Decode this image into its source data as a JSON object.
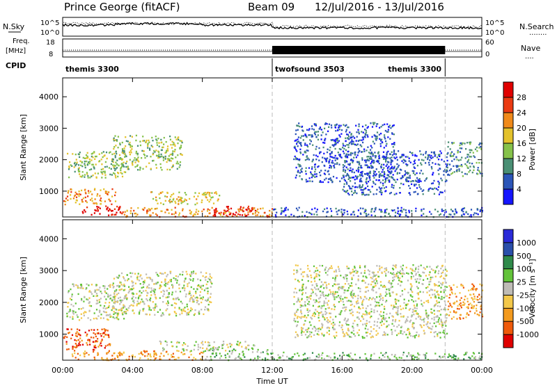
{
  "header": {
    "station": "Prince George (fitACF)",
    "beam": "Beam 09",
    "date_range": "12/Jul/2016 - 13/Jul/2016"
  },
  "nsky_panel": {
    "left_label": "N.Sky",
    "right_label": "N.Search",
    "right_legend": "........",
    "left_ticks": [
      "10^5",
      "10^0"
    ],
    "right_ticks": [
      "10^5",
      "10^0"
    ]
  },
  "freq_panel": {
    "left_label_1": "Freq.",
    "left_label_2": "[MHz]",
    "right_label": "Nave",
    "right_legend": "....",
    "left_ticks": [
      "18",
      "8"
    ],
    "right_ticks": [
      "60",
      "0"
    ]
  },
  "cpid": {
    "label": "CPID",
    "segments": [
      {
        "start_h": 0,
        "end_h": 12,
        "name": "themis 3300"
      },
      {
        "start_h": 12,
        "end_h": 21.9,
        "name": "twofsound 3503"
      },
      {
        "start_h": 21.9,
        "end_h": 24,
        "name": "themis 3300"
      }
    ]
  },
  "colors": {
    "power": [
      "#1515ff",
      "#2b55b8",
      "#4a8f74",
      "#86c24a",
      "#e3c22c",
      "#f08a1a",
      "#ea3a12",
      "#e00000"
    ],
    "velocity": [
      "#e00000",
      "#ef5a0a",
      "#f39a1e",
      "#f3c84a",
      "#bfbcb6",
      "#63c33a",
      "#2f8a4a",
      "#2a4faa",
      "#2a2ad8"
    ],
    "noise_line": "#000000"
  },
  "chart_data": [
    {
      "type": "heatmap",
      "name": "power",
      "xlabel": "",
      "ylabel": "Slant Range [km]",
      "xlim": [
        0,
        24
      ],
      "ylim": [
        180,
        4600
      ],
      "y_ticks": [
        1000,
        2000,
        3000,
        4000
      ],
      "colorbar": {
        "label": "Power [dB]",
        "ticks": [
          "4",
          "8",
          "12",
          "16",
          "20",
          "24",
          "28"
        ],
        "range": [
          0,
          30
        ]
      },
      "regions": [
        {
          "t0": 0.2,
          "t1": 3.6,
          "r0": 1450,
          "r1": 2300,
          "level": 3
        },
        {
          "t0": 2.8,
          "t1": 6.8,
          "r0": 1700,
          "r1": 2800,
          "level": 3
        },
        {
          "t0": 0.0,
          "t1": 3.0,
          "r0": 600,
          "r1": 1100,
          "level": 5
        },
        {
          "t0": 1.0,
          "t1": 3.6,
          "r0": 250,
          "r1": 550,
          "level": 7
        },
        {
          "t0": 5.0,
          "t1": 9.0,
          "r0": 600,
          "r1": 1000,
          "level": 4
        },
        {
          "t0": 8.5,
          "t1": 11.0,
          "r0": 200,
          "r1": 550,
          "level": 7
        },
        {
          "t0": 3.5,
          "t1": 12.0,
          "r0": 200,
          "r1": 500,
          "level": 5
        },
        {
          "t0": 12.0,
          "t1": 24.0,
          "r0": 200,
          "r1": 500,
          "level": 1
        },
        {
          "t0": 13.2,
          "t1": 19.0,
          "r0": 1300,
          "r1": 3200,
          "level": 1
        },
        {
          "t0": 16.0,
          "t1": 22.0,
          "r0": 900,
          "r1": 2300,
          "level": 1
        },
        {
          "t0": 22.0,
          "t1": 24.0,
          "r0": 1500,
          "r1": 2600,
          "level": 2
        }
      ]
    },
    {
      "type": "heatmap",
      "name": "velocity",
      "xlabel": "Time UT",
      "ylabel": "Slant Range [km]",
      "xlim": [
        0,
        24
      ],
      "ylim": [
        180,
        4600
      ],
      "y_ticks": [
        1000,
        2000,
        3000,
        4000
      ],
      "x_ticks": [
        "00:00",
        "04:00",
        "08:00",
        "12:00",
        "16:00",
        "20:00",
        "00:00"
      ],
      "colorbar": {
        "label": "Velocity [m s⁻¹]",
        "ticks": [
          "-1000",
          "-500",
          "-100",
          "-25",
          "25",
          "100",
          "500",
          "1000"
        ]
      },
      "regions": [
        {
          "t0": 0.2,
          "t1": 3.6,
          "r0": 1450,
          "r1": 2600,
          "level": 4
        },
        {
          "t0": 2.8,
          "t1": 8.5,
          "r0": 1600,
          "r1": 3000,
          "level": 4
        },
        {
          "t0": 0.0,
          "t1": 2.8,
          "r0": 500,
          "r1": 1200,
          "level": 1
        },
        {
          "t0": 0.5,
          "t1": 8.0,
          "r0": 200,
          "r1": 500,
          "level": 2
        },
        {
          "t0": 5.5,
          "t1": 11.0,
          "r0": 500,
          "r1": 800,
          "level": 4
        },
        {
          "t0": 8.0,
          "t1": 12.0,
          "r0": 200,
          "r1": 550,
          "level": 5
        },
        {
          "t0": 12.0,
          "t1": 24.0,
          "r0": 200,
          "r1": 450,
          "level": 5
        },
        {
          "t0": 13.2,
          "t1": 22.0,
          "r0": 900,
          "r1": 3200,
          "level": 4
        },
        {
          "t0": 22.0,
          "t1": 24.0,
          "r0": 1500,
          "r1": 2600,
          "level": 2
        }
      ]
    }
  ]
}
